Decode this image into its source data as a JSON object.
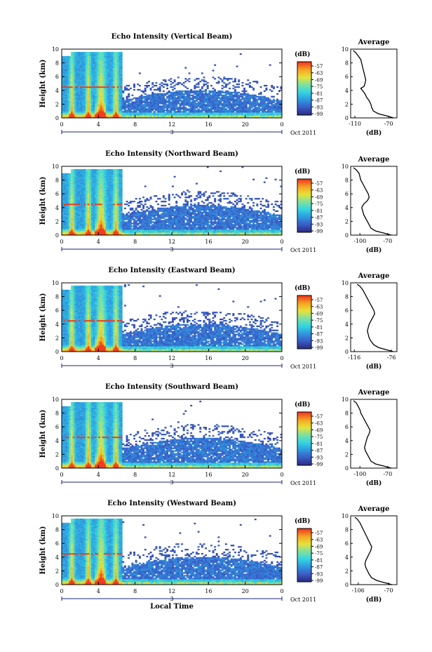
{
  "chart_data": [
    {
      "type": "heatmap",
      "title": "Echo Intensity (Vertical Beam)",
      "ylabel": "Height (km)",
      "xlabel": "",
      "xlim": [
        0,
        24
      ],
      "ylim": [
        0,
        10
      ],
      "x_ticks": [
        "0",
        "4",
        "8",
        "12",
        "16",
        "20",
        "0"
      ],
      "y_ticks": [
        "0",
        "2",
        "4",
        "6",
        "8",
        "10"
      ],
      "date_marker": "3",
      "date_label": "Oct 2011",
      "colorbar": {
        "unit": "(dB)",
        "levels": [
          "-57",
          "-63",
          "-69",
          "-75",
          "-81",
          "-87",
          "-93",
          "-99"
        ]
      },
      "profile": {
        "title": "Average",
        "xlabel": "(dB)",
        "x_ticks": [
          "-110",
          "-70"
        ],
        "xlim": [
          -115,
          -60
        ],
        "height_km": [
          0,
          0.3,
          0.6,
          1,
          1.5,
          2,
          2.5,
          3,
          3.5,
          4,
          4.3,
          4.6,
          5,
          5.5,
          6,
          6.5,
          7,
          7.5,
          8,
          8.5,
          9,
          9.5,
          9.8
        ],
        "value_db": [
          -64,
          -72,
          -82,
          -88,
          -90,
          -91,
          -93,
          -96,
          -98,
          -101,
          -103,
          -99,
          -98,
          -97,
          -98,
          -99,
          -100,
          -101,
          -102,
          -103,
          -106,
          -109,
          -112
        ]
      }
    },
    {
      "type": "heatmap",
      "title": "Echo Intensity (Northward Beam)",
      "ylabel": "Height (km)",
      "xlabel": "",
      "xlim": [
        0,
        24
      ],
      "ylim": [
        0,
        10
      ],
      "x_ticks": [
        "0",
        "4",
        "8",
        "12",
        "16",
        "20",
        "0"
      ],
      "y_ticks": [
        "0",
        "2",
        "4",
        "6",
        "8",
        "10"
      ],
      "date_marker": "3",
      "date_label": "Oct 2011",
      "colorbar": {
        "unit": "(dB)",
        "levels": [
          "-57",
          "-63",
          "-69",
          "-75",
          "-81",
          "-87",
          "-93",
          "-99"
        ]
      },
      "profile": {
        "title": "Average",
        "xlabel": "(dB)",
        "x_ticks": [
          "-100",
          "-70"
        ],
        "xlim": [
          -110,
          -60
        ],
        "height_km": [
          0,
          0.3,
          0.6,
          1,
          1.5,
          2,
          2.5,
          3,
          3.5,
          4,
          4.5,
          5,
          5.5,
          6,
          6.5,
          7,
          7.5,
          8,
          8.5,
          9,
          9.5,
          9.8
        ],
        "value_db": [
          -66,
          -74,
          -83,
          -88,
          -90,
          -92,
          -94,
          -96,
          -97,
          -98,
          -96,
          -92,
          -90,
          -91,
          -93,
          -95,
          -97,
          -99,
          -100,
          -101,
          -104,
          -107
        ]
      }
    },
    {
      "type": "heatmap",
      "title": "Echo Intensity (Eastward Beam)",
      "ylabel": "Height (km)",
      "xlabel": "",
      "xlim": [
        0,
        24
      ],
      "ylim": [
        0,
        10
      ],
      "x_ticks": [
        "0",
        "4",
        "8",
        "12",
        "16",
        "20",
        "0"
      ],
      "y_ticks": [
        "0",
        "2",
        "4",
        "6",
        "8",
        "10"
      ],
      "date_marker": "3",
      "date_label": "Oct 2011",
      "colorbar": {
        "unit": "(dB)",
        "levels": [
          "-57",
          "-63",
          "-69",
          "-75",
          "-81",
          "-87",
          "-93",
          "-99"
        ]
      },
      "profile": {
        "title": "Average",
        "xlabel": "(dB)",
        "x_ticks": [
          "-116",
          "-76"
        ],
        "xlim": [
          -120,
          -70
        ],
        "height_km": [
          0,
          0.3,
          0.6,
          1,
          1.5,
          2,
          2.5,
          3,
          3.5,
          4,
          4.5,
          5,
          5.5,
          6,
          6.5,
          7,
          7.5,
          8,
          8.5,
          9,
          9.5,
          9.8
        ],
        "value_db": [
          -74,
          -82,
          -90,
          -95,
          -98,
          -100,
          -101,
          -102,
          -101,
          -100,
          -98,
          -96,
          -94,
          -95,
          -97,
          -99,
          -101,
          -103,
          -105,
          -107,
          -110,
          -113
        ]
      }
    },
    {
      "type": "heatmap",
      "title": "Echo Intensity (Southward Beam)",
      "ylabel": "Height (km)",
      "xlabel": "",
      "xlim": [
        0,
        24
      ],
      "ylim": [
        0,
        10
      ],
      "x_ticks": [
        "0",
        "4",
        "8",
        "12",
        "16",
        "20",
        "0"
      ],
      "y_ticks": [
        "0",
        "2",
        "4",
        "6",
        "8",
        "10"
      ],
      "date_marker": "3",
      "date_label": "Oct 2011",
      "colorbar": {
        "unit": "(dB)",
        "levels": [
          "-57",
          "-63",
          "-69",
          "-75",
          "-81",
          "-87",
          "-93",
          "-99"
        ]
      },
      "profile": {
        "title": "Average",
        "xlabel": "(dB)",
        "x_ticks": [
          "-100",
          "-70"
        ],
        "xlim": [
          -110,
          -60
        ],
        "height_km": [
          0,
          0.3,
          0.6,
          1,
          1.5,
          2,
          2.5,
          3,
          3.5,
          4,
          4.5,
          5,
          5.5,
          6,
          6.5,
          7,
          7.5,
          8,
          8.5,
          9,
          9.5,
          9.8
        ],
        "value_db": [
          -66,
          -74,
          -83,
          -88,
          -90,
          -92,
          -94,
          -95,
          -94,
          -93,
          -92,
          -90,
          -89,
          -91,
          -93,
          -95,
          -97,
          -99,
          -100,
          -102,
          -104,
          -107
        ]
      }
    },
    {
      "type": "heatmap",
      "title": "Echo Intensity (Westward Beam)",
      "ylabel": "Height (km)",
      "xlabel": "Local Time",
      "xlim": [
        0,
        24
      ],
      "ylim": [
        0,
        10
      ],
      "x_ticks": [
        "0",
        "4",
        "8",
        "12",
        "16",
        "20",
        "0"
      ],
      "y_ticks": [
        "0",
        "2",
        "4",
        "6",
        "8",
        "10"
      ],
      "date_marker": "3",
      "date_label": "Oct 2011",
      "colorbar": {
        "unit": "(dB)",
        "levels": [
          "-57",
          "-63",
          "-69",
          "-75",
          "-81",
          "-87",
          "-93",
          "-99"
        ]
      },
      "profile": {
        "title": "Average",
        "xlabel": "(dB)",
        "x_ticks": [
          "-106",
          "-70"
        ],
        "xlim": [
          -115,
          -60
        ],
        "height_km": [
          0,
          0.3,
          0.6,
          1,
          1.5,
          2,
          2.5,
          3,
          3.5,
          4,
          4.5,
          5,
          5.5,
          6,
          6.5,
          7,
          7.5,
          8,
          8.5,
          9,
          9.5,
          9.8
        ],
        "value_db": [
          -66,
          -75,
          -84,
          -90,
          -93,
          -95,
          -97,
          -98,
          -97,
          -95,
          -93,
          -91,
          -90,
          -92,
          -94,
          -96,
          -98,
          -100,
          -102,
          -104,
          -107,
          -110
        ]
      }
    }
  ],
  "colors": {
    "colorbar_stops": [
      "#2b2f86",
      "#3a5fc9",
      "#2e9be0",
      "#35d6e0",
      "#7fe0a0",
      "#e6e23a",
      "#f5a623",
      "#ef3b1e"
    ]
  }
}
